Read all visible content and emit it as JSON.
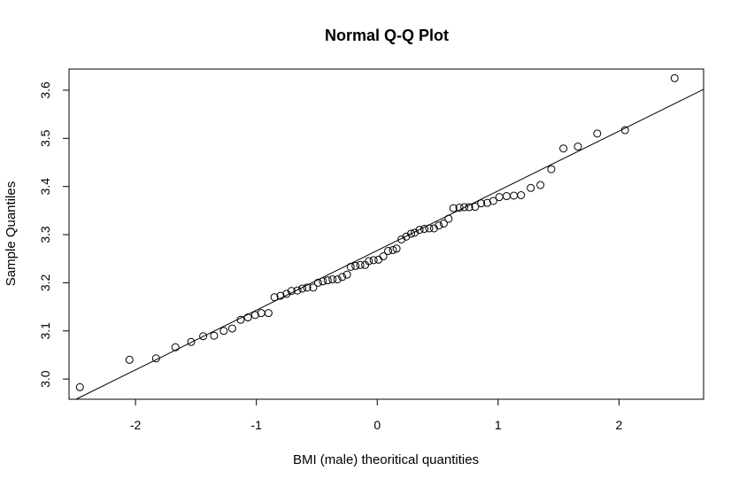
{
  "chart_data": {
    "type": "scatter",
    "title": "Normal Q-Q Plot",
    "xlabel": "BMI (male) theoritical quantities",
    "ylabel": "Sample Quantiles",
    "xlim": [
      -2.55,
      2.7
    ],
    "ylim": [
      2.958,
      3.644
    ],
    "xticks": [
      -2,
      -1,
      0,
      1,
      2
    ],
    "yticks": [
      3.0,
      3.1,
      3.2,
      3.3,
      3.4,
      3.5,
      3.6
    ],
    "xtick_labels": [
      "-2",
      "-1",
      "0",
      "1",
      "2"
    ],
    "ytick_labels": [
      "3.0",
      "3.1",
      "3.2",
      "3.3",
      "3.4",
      "3.5",
      "3.6"
    ],
    "grid": false,
    "reference_line": {
      "intercept": 3.267,
      "slope": 0.124
    },
    "points": {
      "x": [
        -2.46,
        -2.05,
        -1.83,
        -1.67,
        -1.54,
        -1.44,
        -1.35,
        -1.27,
        -1.2,
        -1.13,
        -1.07,
        -1.01,
        -0.96,
        -0.9,
        -0.85,
        -0.8,
        -0.75,
        -0.71,
        -0.66,
        -0.62,
        -0.58,
        -0.53,
        -0.49,
        -0.45,
        -0.41,
        -0.37,
        -0.33,
        -0.29,
        -0.25,
        -0.22,
        -0.18,
        -0.14,
        -0.1,
        -0.07,
        -0.03,
        0.01,
        0.05,
        0.09,
        0.13,
        0.16,
        0.2,
        0.24,
        0.28,
        0.31,
        0.35,
        0.39,
        0.43,
        0.47,
        0.51,
        0.55,
        0.59,
        0.63,
        0.68,
        0.72,
        0.76,
        0.81,
        0.86,
        0.91,
        0.96,
        1.01,
        1.07,
        1.13,
        1.19,
        1.27,
        1.35,
        1.44,
        1.54,
        1.66,
        1.82,
        2.05,
        2.46
      ],
      "y": [
        2.983,
        3.04,
        3.043,
        3.066,
        3.077,
        3.089,
        3.09,
        3.1,
        3.105,
        3.123,
        3.128,
        3.133,
        3.137,
        3.137,
        3.17,
        3.173,
        3.177,
        3.183,
        3.184,
        3.188,
        3.19,
        3.19,
        3.2,
        3.203,
        3.205,
        3.207,
        3.207,
        3.212,
        3.217,
        3.233,
        3.235,
        3.237,
        3.237,
        3.245,
        3.247,
        3.248,
        3.255,
        3.266,
        3.268,
        3.271,
        3.29,
        3.296,
        3.302,
        3.304,
        3.31,
        3.312,
        3.313,
        3.313,
        3.319,
        3.323,
        3.333,
        3.355,
        3.356,
        3.357,
        3.357,
        3.358,
        3.365,
        3.366,
        3.37,
        3.378,
        3.38,
        3.381,
        3.382,
        3.397,
        3.403,
        3.436,
        3.479,
        3.483,
        3.51,
        3.517,
        3.625
      ]
    }
  }
}
